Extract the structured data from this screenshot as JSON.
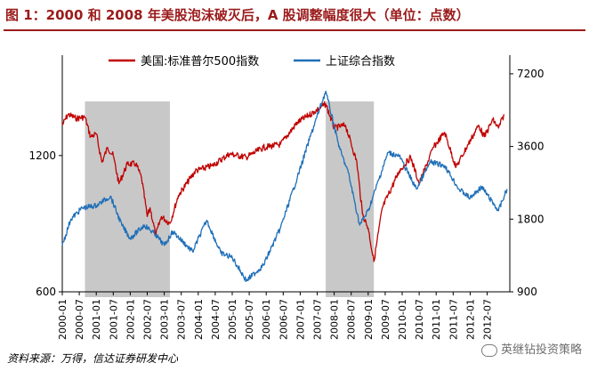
{
  "title": "图 1：2000 和 2008 年美股泡沫破灭后，A 股调整幅度很大（单位：点数）",
  "source": "资料来源：万得，信达证券研发中心",
  "watermark": "英继钻投资策略",
  "chart_data": {
    "type": "line",
    "title": "图 1：2000 和 2008 年美股泡沫破灭后，A 股调整幅度很大（单位：点数）",
    "xlabel": "",
    "ylabel_left": "",
    "ylabel_right": "",
    "x_range": [
      "2000-01",
      "2013-03"
    ],
    "x_tick_labels": [
      "2000-01",
      "2000-07",
      "2001-01",
      "2001-07",
      "2002-01",
      "2002-07",
      "2003-01",
      "2003-07",
      "2004-01",
      "2004-07",
      "2005-01",
      "2005-07",
      "2006-01",
      "2006-07",
      "2007-01",
      "2007-07",
      "2008-01",
      "2008-07",
      "2009-01",
      "2009-07",
      "2010-01",
      "2010-07",
      "2011-01",
      "2011-07",
      "2012-01",
      "2012-07"
    ],
    "y_left": {
      "scale": "log",
      "ylim": [
        600,
        2000
      ],
      "ticks": [
        600,
        1200
      ]
    },
    "y_right": {
      "scale": "log",
      "ylim": [
        900,
        8600
      ],
      "ticks": [
        900,
        1800,
        3600,
        7200
      ]
    },
    "grid": false,
    "legend_placement": "top",
    "shaded_periods": [
      {
        "start": "2000-09",
        "end": "2003-03"
      },
      {
        "start": "2007-10",
        "end": "2009-03"
      }
    ],
    "series": [
      {
        "name": "美国:标准普尔500指数",
        "axis": "left",
        "color": "#c00000",
        "points": [
          [
            "2000-01",
            1400
          ],
          [
            "2000-03",
            1480
          ],
          [
            "2000-06",
            1450
          ],
          [
            "2000-09",
            1460
          ],
          [
            "2000-11",
            1320
          ],
          [
            "2001-01",
            1340
          ],
          [
            "2001-03",
            1160
          ],
          [
            "2001-05",
            1250
          ],
          [
            "2001-07",
            1200
          ],
          [
            "2001-09",
            1040
          ],
          [
            "2001-12",
            1150
          ],
          [
            "2002-03",
            1150
          ],
          [
            "2002-05",
            1070
          ],
          [
            "2002-07",
            880
          ],
          [
            "2002-08",
            920
          ],
          [
            "2002-10",
            800
          ],
          [
            "2002-12",
            880
          ],
          [
            "2003-03",
            850
          ],
          [
            "2003-06",
            980
          ],
          [
            "2003-12",
            1110
          ],
          [
            "2004-06",
            1140
          ],
          [
            "2004-12",
            1210
          ],
          [
            "2005-06",
            1190
          ],
          [
            "2005-12",
            1250
          ],
          [
            "2006-06",
            1270
          ],
          [
            "2006-12",
            1420
          ],
          [
            "2007-06",
            1500
          ],
          [
            "2007-10",
            1560
          ],
          [
            "2008-01",
            1380
          ],
          [
            "2008-05",
            1400
          ],
          [
            "2008-09",
            1160
          ],
          [
            "2008-11",
            890
          ],
          [
            "2009-01",
            830
          ],
          [
            "2009-03",
            700
          ],
          [
            "2009-06",
            920
          ],
          [
            "2009-12",
            1110
          ],
          [
            "2010-04",
            1190
          ],
          [
            "2010-07",
            1040
          ],
          [
            "2010-12",
            1250
          ],
          [
            "2011-04",
            1350
          ],
          [
            "2011-08",
            1130
          ],
          [
            "2011-12",
            1260
          ],
          [
            "2012-04",
            1400
          ],
          [
            "2012-06",
            1320
          ],
          [
            "2012-09",
            1440
          ],
          [
            "2012-11",
            1380
          ],
          [
            "2013-01",
            1480
          ]
        ]
      },
      {
        "name": "上证综合指数",
        "axis": "right",
        "color": "#1f6fb8",
        "points": [
          [
            "2000-01",
            1400
          ],
          [
            "2000-04",
            1800
          ],
          [
            "2000-08",
            2000
          ],
          [
            "2001-01",
            2050
          ],
          [
            "2001-06",
            2240
          ],
          [
            "2001-10",
            1700
          ],
          [
            "2002-01",
            1500
          ],
          [
            "2002-06",
            1700
          ],
          [
            "2002-10",
            1550
          ],
          [
            "2003-01",
            1400
          ],
          [
            "2003-04",
            1600
          ],
          [
            "2003-11",
            1320
          ],
          [
            "2004-04",
            1780
          ],
          [
            "2004-09",
            1300
          ],
          [
            "2005-01",
            1250
          ],
          [
            "2005-06",
            1000
          ],
          [
            "2005-12",
            1160
          ],
          [
            "2006-06",
            1650
          ],
          [
            "2006-12",
            2680
          ],
          [
            "2007-05",
            4100
          ],
          [
            "2007-10",
            6100
          ],
          [
            "2008-03",
            3500
          ],
          [
            "2008-06",
            2800
          ],
          [
            "2008-10",
            1700
          ],
          [
            "2009-01",
            1950
          ],
          [
            "2009-08",
            3400
          ],
          [
            "2009-12",
            3280
          ],
          [
            "2010-06",
            2400
          ],
          [
            "2010-11",
            3100
          ],
          [
            "2011-04",
            3000
          ],
          [
            "2011-09",
            2400
          ],
          [
            "2012-01",
            2200
          ],
          [
            "2012-05",
            2450
          ],
          [
            "2012-11",
            1950
          ],
          [
            "2013-02",
            2400
          ]
        ]
      }
    ]
  }
}
